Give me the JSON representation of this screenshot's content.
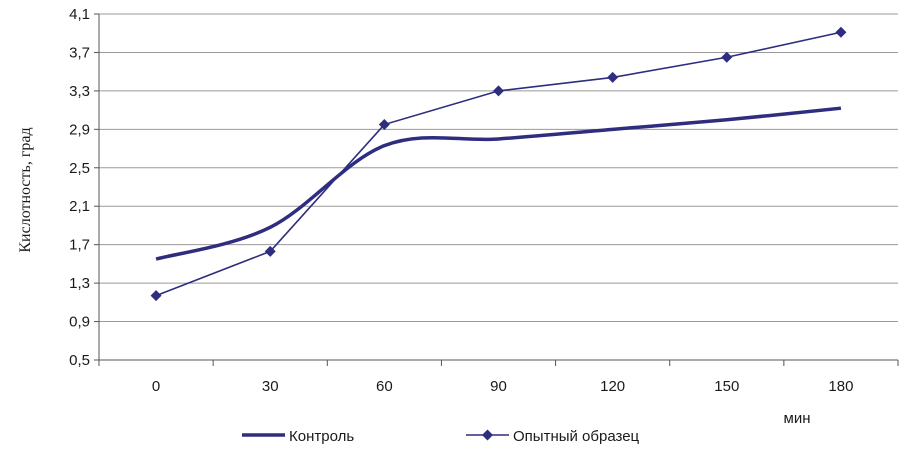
{
  "chart_data": {
    "type": "line",
    "xlabel": "мин",
    "ylabel": "Кислотность, град",
    "x": [
      0,
      30,
      60,
      90,
      120,
      150,
      180
    ],
    "ylim": [
      0.5,
      4.1
    ],
    "yticks": [
      "0,5",
      "0,9",
      "1,3",
      "1,7",
      "2,1",
      "2,5",
      "2,9",
      "3,3",
      "3,7",
      "4,1"
    ],
    "xticks": [
      "0",
      "30",
      "60",
      "90",
      "120",
      "150",
      "180"
    ],
    "grid": "horizontal",
    "legend": "bottom",
    "series": [
      {
        "name": "Контроль",
        "values": [
          1.55,
          1.88,
          2.73,
          2.8,
          2.9,
          3.0,
          3.12
        ],
        "color": "#2e2d7f",
        "marker": "none",
        "smooth": true
      },
      {
        "name": "Опытный образец",
        "values": [
          1.17,
          1.63,
          2.95,
          3.3,
          3.44,
          3.65,
          3.91
        ],
        "color": "#2e2d7f",
        "marker": "diamond",
        "smooth": false
      }
    ]
  }
}
